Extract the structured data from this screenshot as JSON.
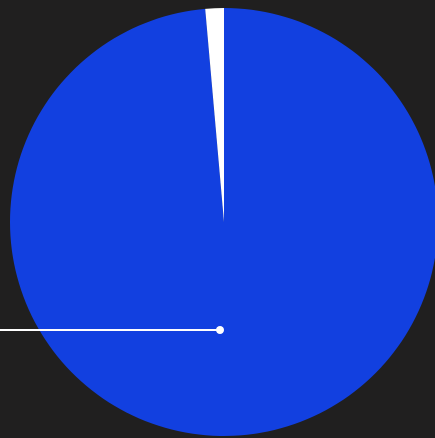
{
  "colors": {
    "background": "#201f1f",
    "primary_slice": "#1240e0",
    "secondary_slice": "#ffffff",
    "leader_line": "#ffffff"
  },
  "chart_data": {
    "type": "pie",
    "title": "",
    "slices": [
      {
        "value": 98.6,
        "color": "#1240e0"
      },
      {
        "value": 1.4,
        "color": "#ffffff"
      }
    ],
    "grid": false,
    "legend": "none"
  }
}
